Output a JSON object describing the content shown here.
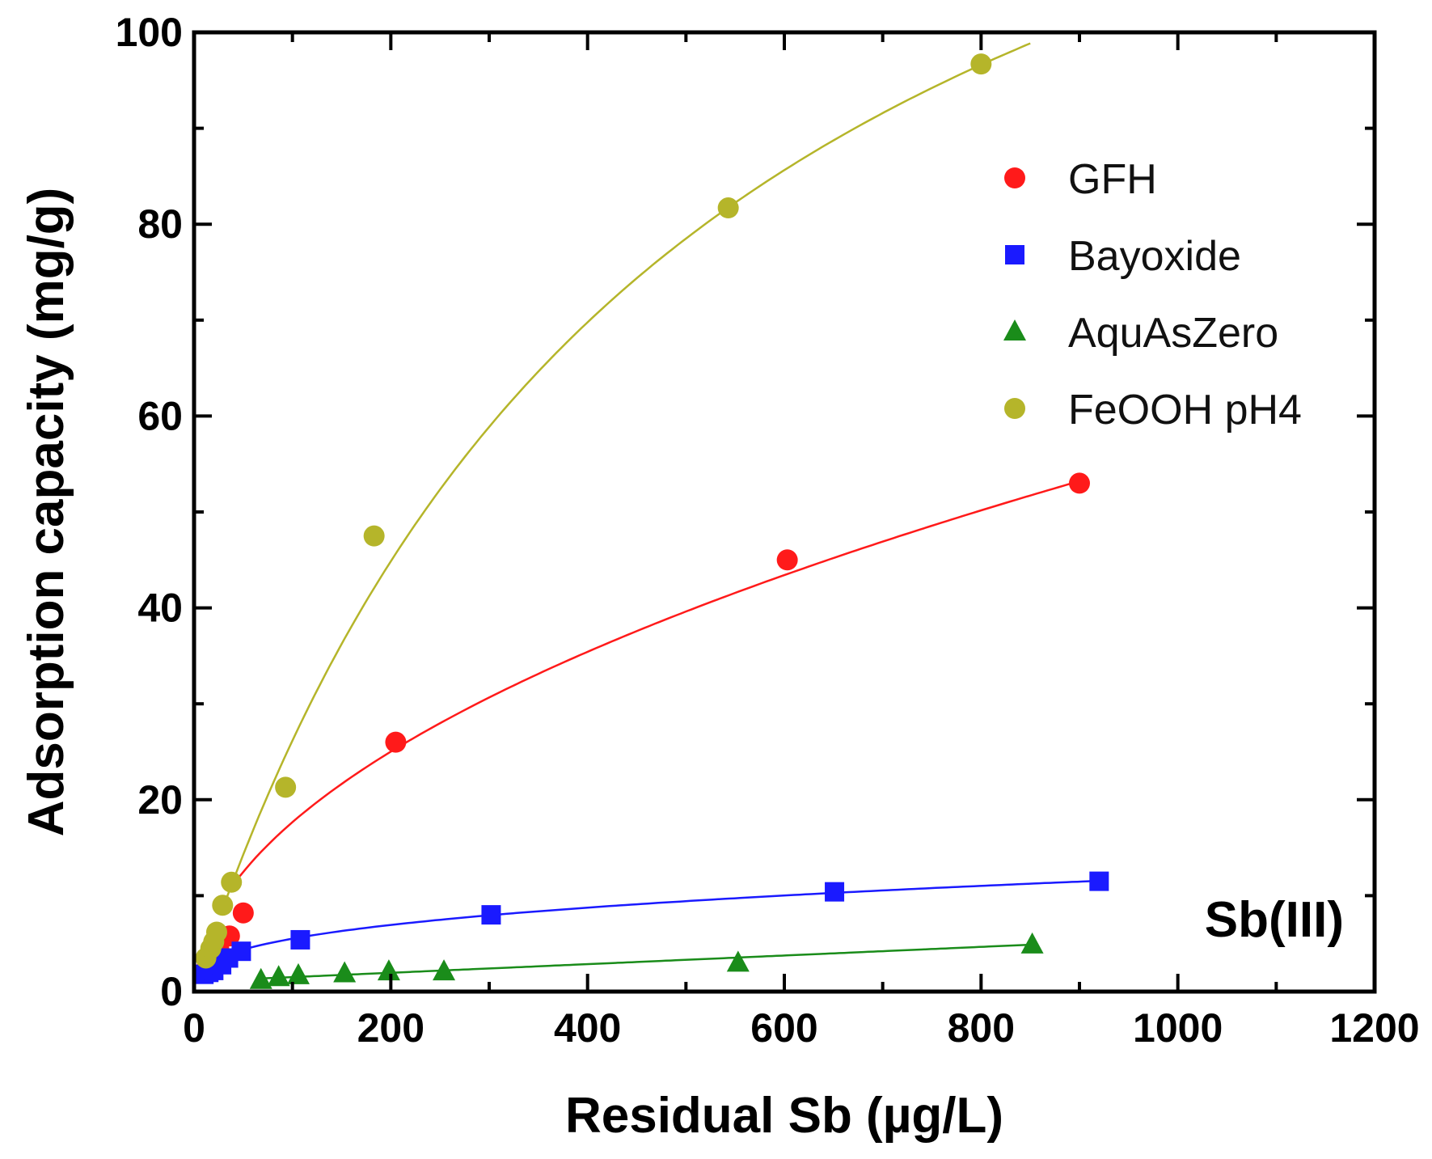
{
  "chart_data": {
    "type": "scatter",
    "title": "",
    "xlabel": "Residual Sb (µg/L)",
    "ylabel": "Adsorption capacity (mg/g)",
    "xlim": [
      0,
      1200
    ],
    "ylim": [
      0,
      100
    ],
    "x_ticks": [
      0,
      200,
      400,
      600,
      800,
      1000,
      1200
    ],
    "y_ticks": [
      0,
      20,
      40,
      60,
      80,
      100
    ],
    "x_tick_labels": [
      "0",
      "200",
      "400",
      "600",
      "800",
      "1000",
      "1200"
    ],
    "y_tick_labels": [
      "0",
      "20",
      "40",
      "60",
      "80",
      "100"
    ],
    "grid": false,
    "legend_position": "top-right",
    "annotation": "Sb(III)",
    "series": [
      {
        "name": "GFH",
        "marker": "circle",
        "color": "#ff1a1a",
        "points": [
          [
            13,
            2.5
          ],
          [
            18,
            3.5
          ],
          [
            25,
            4.5
          ],
          [
            36,
            5.8
          ],
          [
            50,
            8.2
          ],
          [
            205,
            26
          ],
          [
            603,
            45
          ],
          [
            900,
            53
          ]
        ],
        "fit": {
          "model": "freundlich",
          "K": 1.75,
          "n": 0.502,
          "x_range": [
            36,
            900
          ]
        }
      },
      {
        "name": "Bayoxide",
        "marker": "square",
        "color": "#1a1aff",
        "points": [
          [
            10,
            1.8
          ],
          [
            15,
            2.0
          ],
          [
            20,
            2.2
          ],
          [
            28,
            2.8
          ],
          [
            35,
            3.5
          ],
          [
            48,
            4.2
          ],
          [
            108,
            5.4
          ],
          [
            302,
            8.0
          ],
          [
            651,
            10.4
          ],
          [
            920,
            11.5
          ]
        ],
        "fit": {
          "model": "freundlich",
          "K": 1.19,
          "n": 0.333,
          "x_range": [
            35,
            920
          ]
        }
      },
      {
        "name": "AquAsZero",
        "marker": "triangle",
        "color": "#1a8c1a",
        "points": [
          [
            68,
            1.2
          ],
          [
            86,
            1.5
          ],
          [
            106,
            1.7
          ],
          [
            153,
            1.9
          ],
          [
            198,
            2.1
          ],
          [
            254,
            2.1
          ],
          [
            553,
            3.0
          ],
          [
            852,
            4.9
          ]
        ],
        "fit": {
          "model": "linear",
          "a": 1.06,
          "b": 0.0045,
          "x_range": [
            68,
            852
          ]
        }
      },
      {
        "name": "FeOOH pH4",
        "marker": "circle",
        "color": "#b5b52a",
        "points": [
          [
            12,
            3.5
          ],
          [
            17,
            4.5
          ],
          [
            20,
            5.2
          ],
          [
            23,
            6.2
          ],
          [
            29,
            9.0
          ],
          [
            38,
            11.4
          ],
          [
            93,
            21.3
          ],
          [
            183,
            47.5
          ],
          [
            543,
            81.7
          ],
          [
            800,
            96.7
          ]
        ],
        "fit": {
          "model": "langmuir",
          "qmax": 157,
          "KL": 0.002,
          "x_range": [
            30,
            850
          ]
        }
      }
    ]
  }
}
